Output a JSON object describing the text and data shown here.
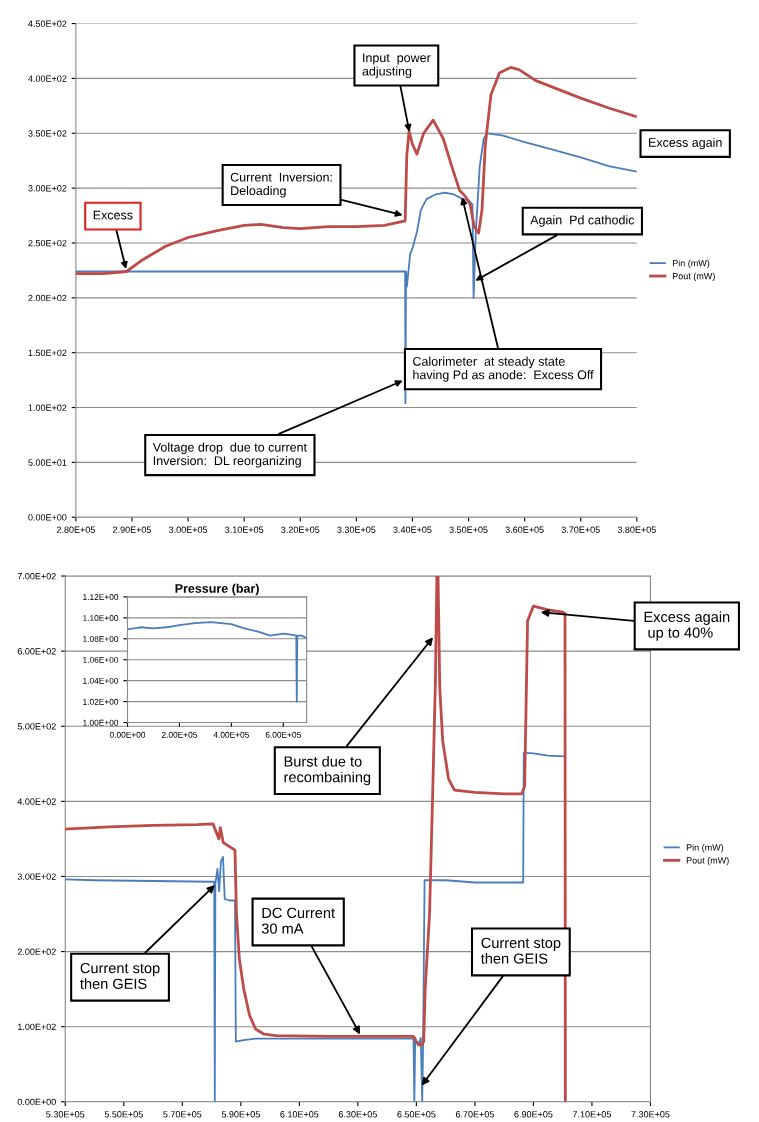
{
  "chart_data": [
    {
      "type": "line",
      "grid": "y",
      "legend": "right",
      "xlim": [
        280000,
        380000
      ],
      "xticks": [
        {
          "value": 280000,
          "label": "2.80E+05"
        },
        {
          "value": 290000,
          "label": "2.90E+05"
        },
        {
          "value": 300000,
          "label": "3.00E+05"
        },
        {
          "value": 310000,
          "label": "3.10E+05"
        },
        {
          "value": 320000,
          "label": "3.20E+05"
        },
        {
          "value": 330000,
          "label": "3.30E+05"
        },
        {
          "value": 340000,
          "label": "3.40E+05"
        },
        {
          "value": 350000,
          "label": "3.50E+05"
        },
        {
          "value": 360000,
          "label": "3.60E+05"
        },
        {
          "value": 370000,
          "label": "3.70E+05"
        },
        {
          "value": 380000,
          "label": "3.80E+05"
        }
      ],
      "ylim": [
        0,
        450
      ],
      "yticks": [
        {
          "value": 0,
          "label": "0.00E+00"
        },
        {
          "value": 50,
          "label": "5.00E+01"
        },
        {
          "value": 100,
          "label": "1.00E+02"
        },
        {
          "value": 150,
          "label": "1.50E+02"
        },
        {
          "value": 200,
          "label": "2.00E+02"
        },
        {
          "value": 250,
          "label": "2.50E+02"
        },
        {
          "value": 300,
          "label": "3.00E+02"
        },
        {
          "value": 350,
          "label": "3.50E+02"
        },
        {
          "value": 400,
          "label": "4.00E+02"
        },
        {
          "value": 450,
          "label": "4.50E+02"
        }
      ],
      "series": [
        {
          "name": "Pin (mW)",
          "color": "#4a7ebb",
          "x": [
            280000,
            338500,
            338700,
            338750,
            338850,
            339000,
            339300,
            339600,
            340000,
            340800,
            341500,
            342500,
            344000,
            345800,
            347500,
            349000,
            350000,
            350700,
            350900,
            351300,
            352000,
            352700,
            353300,
            356000,
            360000,
            365000,
            370000,
            375000,
            380000
          ],
          "values": [
            224,
            224,
            224,
            104,
            224,
            210,
            225,
            240,
            245,
            260,
            280,
            290,
            294,
            296,
            294,
            290,
            289,
            285,
            200,
            260,
            320,
            345,
            350,
            348,
            342,
            335,
            328,
            320,
            315
          ]
        },
        {
          "name": "Pout (mW)",
          "color": "#be4b48",
          "x": [
            280000,
            285000,
            289000,
            292000,
            296000,
            300000,
            305000,
            310000,
            313000,
            317000,
            320000,
            325000,
            330000,
            335000,
            338500,
            338700,
            339000,
            339400,
            340000,
            340800,
            342000,
            343700,
            345500,
            347000,
            348400,
            349500,
            350300,
            351000,
            351800,
            352400,
            353000,
            354000,
            355500,
            357500,
            359000,
            362000,
            366000,
            370000,
            375000,
            380000
          ],
          "values": [
            222,
            222,
            224,
            235,
            247,
            255,
            261,
            266,
            267,
            264,
            263,
            265,
            265,
            266,
            270,
            270,
            330,
            352,
            340,
            331,
            350,
            362,
            345,
            320,
            298,
            292,
            285,
            265,
            259,
            280,
            340,
            385,
            405,
            410,
            408,
            398,
            390,
            382,
            373,
            365
          ]
        }
      ],
      "annotations": [
        {
          "text": "Excess",
          "x": 289000,
          "y": 225
        },
        {
          "text": "Current  Inversion:\nDeloading",
          "x": 338500,
          "y": 275
        },
        {
          "text": "Input  power\nadjusting",
          "x": 339500,
          "y": 350
        },
        "Excess again",
        {
          "text": "Again  Pd cathodic",
          "x": 351000,
          "y": 215
        },
        {
          "text": "Calorimeter  at steady state\nhaving Pd as anode:  Excess Off",
          "x": 348800,
          "y": 293
        },
        {
          "text": "Voltage drop  due to current\nInversion:  DL reorganizing",
          "x": 338500,
          "y": 125
        }
      ]
    },
    {
      "type": "line",
      "grid": "y",
      "legend": "right",
      "xlim": [
        530000,
        730000
      ],
      "xticks": [
        {
          "value": 530000,
          "label": "5.30E+05"
        },
        {
          "value": 550000,
          "label": "5.50E+05"
        },
        {
          "value": 570000,
          "label": "5.70E+05"
        },
        {
          "value": 590000,
          "label": "5.90E+05"
        },
        {
          "value": 610000,
          "label": "6.10E+05"
        },
        {
          "value": 630000,
          "label": "6.30E+05"
        },
        {
          "value": 650000,
          "label": "6.50E+05"
        },
        {
          "value": 670000,
          "label": "6.70E+05"
        },
        {
          "value": 690000,
          "label": "6.90E+05"
        },
        {
          "value": 710000,
          "label": "7.10E+05"
        },
        {
          "value": 730000,
          "label": "7.30E+05"
        }
      ],
      "ylim": [
        0,
        700
      ],
      "yticks": [
        {
          "value": 0,
          "label": "0.00E+00"
        },
        {
          "value": 100,
          "label": "1.00E+02"
        },
        {
          "value": 200,
          "label": "2.00E+02"
        },
        {
          "value": 300,
          "label": "3.00E+02"
        },
        {
          "value": 400,
          "label": "4.00E+02"
        },
        {
          "value": 500,
          "label": "5.00E+02"
        },
        {
          "value": 600,
          "label": "6.00E+02"
        },
        {
          "value": 700,
          "label": "7.00E+02"
        }
      ],
      "series": [
        {
          "name": "Pin (mW)",
          "color": "#4a7ebb",
          "x": [
            530000,
            540000,
            560000,
            580500,
            580900,
            581100,
            581300,
            582000,
            582600,
            583200,
            583900,
            584500,
            586000,
            587500,
            588000,
            588300,
            591000,
            595000,
            600000,
            620000,
            640000,
            649000,
            649300,
            649600,
            650500,
            651500,
            652000,
            652300,
            652800,
            660000,
            670000,
            686500,
            686700,
            690000,
            695000,
            700800,
            700900
          ],
          "values": [
            296,
            295,
            294,
            293,
            293,
            0,
            290,
            310,
            280,
            320,
            326,
            270,
            268,
            268,
            268,
            80,
            82,
            84,
            84,
            84,
            84,
            84,
            0,
            85,
            75,
            85,
            0,
            80,
            295,
            295,
            292,
            292,
            465,
            464,
            461,
            460,
            0
          ]
        },
        {
          "name": "Pout (mW)",
          "color": "#be4b48",
          "x": [
            530000,
            545000,
            560000,
            575000,
            580500,
            581500,
            582500,
            583000,
            584000,
            586000,
            588000,
            588500,
            589500,
            591000,
            593000,
            595000,
            598000,
            602000,
            620000,
            640000,
            649000,
            650000,
            651500,
            652500,
            653000,
            654500,
            655500,
            656500,
            657000,
            657400,
            658000,
            659000,
            661000,
            663000,
            670000,
            680000,
            686000,
            687000,
            688000,
            690000,
            695000,
            700000,
            700800,
            700900
          ],
          "values": [
            363,
            366,
            368,
            369,
            370,
            360,
            350,
            365,
            345,
            340,
            335,
            250,
            190,
            150,
            115,
            97,
            90,
            88,
            87,
            87,
            87,
            80,
            75,
            80,
            150,
            250,
            400,
            560,
            700,
            700,
            550,
            480,
            430,
            415,
            412,
            410,
            410,
            420,
            640,
            660,
            655,
            652,
            650,
            0
          ]
        }
      ],
      "annotations": [
        {
          "text": "Burst due to\nrecombaining",
          "x": 656000,
          "y": 620
        },
        {
          "text": "Excess again\n up to 40%",
          "x": 692000,
          "y": 652
        },
        {
          "text": "Current stop\nthen GEIS",
          "x": 581500,
          "y": 290
        },
        {
          "text": "DC Current\n30 mA",
          "x": 631000,
          "y": 88
        },
        {
          "text": "Current stop\nthen GEIS",
          "x": 651500,
          "y": 20
        }
      ]
    },
    {
      "type": "line",
      "title": "Pressure (bar)",
      "grid": "y",
      "xlim": [
        0,
        690000
      ],
      "xticks": [
        {
          "value": 0,
          "label": "0.00E+00"
        },
        {
          "value": 200000,
          "label": "2.00E+05"
        },
        {
          "value": 400000,
          "label": "4.00E+05"
        },
        {
          "value": 600000,
          "label": "6.00E+05"
        }
      ],
      "ylim": [
        1.0,
        1.12
      ],
      "yticks": [
        {
          "value": 1.0,
          "label": "1.00E+00"
        },
        {
          "value": 1.02,
          "label": "1.02E+00"
        },
        {
          "value": 1.04,
          "label": "1.04E+00"
        },
        {
          "value": 1.06,
          "label": "1.06E+00"
        },
        {
          "value": 1.08,
          "label": "1.08E+00"
        },
        {
          "value": 1.1,
          "label": "1.10E+00"
        },
        {
          "value": 1.12,
          "label": "1.12E+00"
        }
      ],
      "series": [
        {
          "color": "#4a7ebb",
          "x": [
            0,
            50000,
            100000,
            150000,
            200000,
            260000,
            320000,
            360000,
            400000,
            450000,
            500000,
            550000,
            600000,
            630000,
            650000,
            652000,
            654000,
            670000,
            687000
          ],
          "values": [
            1.089,
            1.091,
            1.09,
            1.091,
            1.093,
            1.095,
            1.096,
            1.095,
            1.094,
            1.09,
            1.087,
            1.083,
            1.085,
            1.084,
            1.083,
            1.02,
            1.083,
            1.083,
            1.081
          ]
        }
      ]
    }
  ]
}
